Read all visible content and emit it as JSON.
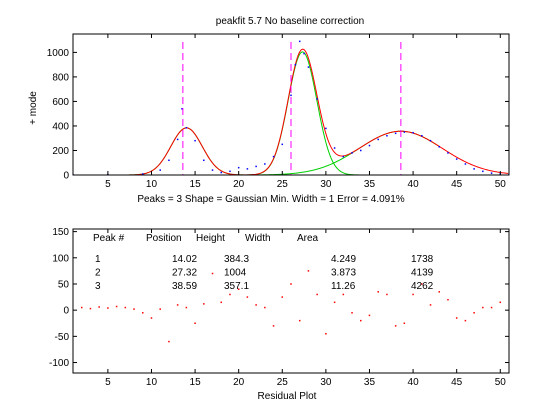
{
  "chart_data": [
    {
      "type": "line",
      "title": "peakfit 5.7  No baseline correction",
      "ylabel": "+ mode",
      "xlabel": "Peaks = 3    Shape = Gaussian   Min. Width = 1    Error = 4.091%",
      "xlim": [
        1,
        51
      ],
      "ylim": [
        0,
        1150
      ],
      "xticks": [
        5,
        10,
        15,
        20,
        25,
        30,
        35,
        40,
        45,
        50
      ],
      "yticks": [
        0,
        200,
        400,
        600,
        800,
        1000
      ],
      "peaks": [
        {
          "position": 14.02,
          "height": 384.3,
          "width": 4.249
        },
        {
          "position": 27.32,
          "height": 1004,
          "width": 3.873
        },
        {
          "position": 38.59,
          "height": 357.1,
          "width": 11.26
        }
      ],
      "marker_positions": [
        13.6,
        26.0,
        38.6
      ],
      "series": [
        {
          "values_x": [
            1,
            5,
            9,
            11,
            12,
            13,
            13.5,
            14,
            15,
            16,
            17,
            18,
            19,
            20,
            21,
            22,
            23,
            24,
            25,
            26,
            26.5,
            27,
            27.5,
            28,
            29,
            30,
            31,
            32,
            33,
            34,
            35,
            36,
            37,
            38,
            39,
            40,
            41,
            42,
            43,
            44,
            45,
            46,
            47,
            48,
            49,
            50,
            51
          ],
          "values_y": [
            2,
            3,
            8,
            40,
            120,
            290,
            540,
            385,
            280,
            120,
            40,
            20,
            30,
            60,
            50,
            70,
            90,
            150,
            250,
            650,
            900,
            1090,
            990,
            880,
            620,
            380,
            220,
            150,
            180,
            200,
            240,
            290,
            320,
            340,
            350,
            345,
            320,
            280,
            230,
            180,
            130,
            90,
            50,
            30,
            15,
            8,
            5
          ]
        }
      ]
    },
    {
      "type": "scatter",
      "xlabel": "Residual Plot",
      "xlim": [
        1,
        51
      ],
      "ylim": [
        -120,
        155
      ],
      "xticks": [
        5,
        10,
        15,
        20,
        25,
        30,
        35,
        40,
        45,
        50
      ],
      "yticks": [
        -100,
        -50,
        0,
        50,
        100,
        150
      ],
      "x": [
        2,
        3,
        4,
        5,
        6,
        7,
        8,
        9,
        10,
        11,
        12,
        13,
        14,
        15,
        16,
        17,
        18,
        19,
        20,
        21,
        22,
        23,
        24,
        25,
        26,
        27,
        28,
        29,
        30,
        31,
        32,
        33,
        34,
        35,
        36,
        37,
        38,
        39,
        40,
        41,
        42,
        43,
        44,
        45,
        46,
        47,
        48,
        49,
        50
      ],
      "y": [
        5,
        3,
        6,
        4,
        7,
        5,
        2,
        -5,
        -15,
        2,
        -60,
        10,
        5,
        -25,
        12,
        70,
        15,
        30,
        40,
        25,
        10,
        5,
        -30,
        25,
        50,
        -20,
        75,
        30,
        -45,
        15,
        30,
        -5,
        -20,
        -10,
        35,
        30,
        -30,
        -25,
        30,
        50,
        10,
        35,
        20,
        -15,
        -20,
        -5,
        5,
        5,
        15
      ]
    }
  ],
  "table": {
    "headers": [
      "Peak #",
      "Position",
      "Height",
      "Width",
      "Area"
    ],
    "rows": [
      [
        "1",
        "14.02",
        "384.3",
        "4.249",
        "1738"
      ],
      [
        "2",
        "27.32",
        "1004",
        "3.873",
        "4139"
      ],
      [
        "3",
        "38.59",
        "357.1",
        "11.26",
        "4262"
      ]
    ]
  },
  "colors": {
    "fit": "#ff0000",
    "components": "#00d000",
    "markers": "#ff00ff",
    "data_points": "#0000ff",
    "residuals": "#ff0000"
  }
}
